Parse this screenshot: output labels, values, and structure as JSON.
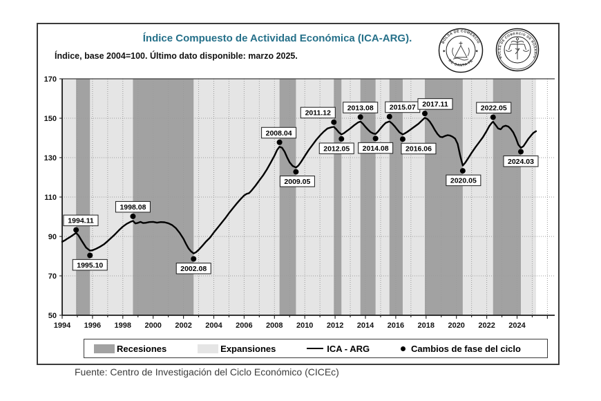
{
  "header": {
    "title": "Índice Compuesto de Actividad Económica (ICA-ARG).",
    "subtitle": "Índice, base 2004=100. Último dato disponible: marzo 2025."
  },
  "logos": {
    "santafe_top": "BOLSA DE COMERCIO",
    "santafe_bottom": "DE SANTA FE",
    "rosario_text": "BOLSA DE COMERCIO DE ROSARIO"
  },
  "legend": {
    "items": [
      {
        "label": "Recesiones"
      },
      {
        "label": "Expansiones"
      },
      {
        "label": "ICA - ARG"
      },
      {
        "label": "Cambios de fase del ciclo"
      }
    ]
  },
  "footer": {
    "source": "Fuente: Centro de Investigación del Ciclo Económico (CICEc)"
  },
  "colors": {
    "title": "#257089",
    "recession": "#a2a2a2",
    "expansion": "#e5e5e5",
    "grid": "#9a9a9a",
    "line": "#000000"
  },
  "chart_data": {
    "type": "line",
    "title": "Índice Compuesto de Actividad Económica (ICA-ARG).",
    "xlabel": "",
    "ylabel": "",
    "x_domain": [
      1994,
      2026.8
    ],
    "y_domain": [
      50,
      170
    ],
    "x_tick_labels": [
      1994,
      1996,
      1998,
      2000,
      2002,
      2004,
      2006,
      2008,
      2010,
      2012,
      2014,
      2016,
      2018,
      2020,
      2022,
      2024
    ],
    "y_tick_labels": [
      50,
      70,
      90,
      110,
      130,
      150,
      170
    ],
    "grid": true,
    "data_end_year": 2025.25,
    "recessions": [
      [
        1994.917,
        1995.833
      ],
      [
        1998.667,
        2002.667
      ],
      [
        2008.333,
        2009.417
      ],
      [
        2011.917,
        2012.417
      ],
      [
        2013.667,
        2014.667
      ],
      [
        2015.583,
        2016.458
      ],
      [
        2017.917,
        2020.417
      ],
      [
        2022.417,
        2024.25
      ]
    ],
    "series": [
      {
        "name": "ICA - ARG",
        "points": [
          [
            1994.0,
            87.3
          ],
          [
            1994.17,
            88.0
          ],
          [
            1994.33,
            88.8
          ],
          [
            1994.5,
            89.6
          ],
          [
            1994.67,
            90.5
          ],
          [
            1994.92,
            91.8
          ],
          [
            1995.08,
            90.5
          ],
          [
            1995.25,
            88.3
          ],
          [
            1995.42,
            86.2
          ],
          [
            1995.58,
            84.3
          ],
          [
            1995.83,
            82.8
          ],
          [
            1996.0,
            83.0
          ],
          [
            1996.25,
            83.8
          ],
          [
            1996.5,
            84.8
          ],
          [
            1996.75,
            86.0
          ],
          [
            1997.0,
            87.6
          ],
          [
            1997.25,
            89.4
          ],
          [
            1997.5,
            91.2
          ],
          [
            1997.75,
            93.2
          ],
          [
            1998.0,
            95.0
          ],
          [
            1998.25,
            96.4
          ],
          [
            1998.5,
            97.4
          ],
          [
            1998.67,
            97.9
          ],
          [
            1998.83,
            96.6
          ],
          [
            1999.0,
            96.9
          ],
          [
            1999.17,
            97.4
          ],
          [
            1999.33,
            96.8
          ],
          [
            1999.5,
            96.9
          ],
          [
            1999.75,
            97.3
          ],
          [
            2000.0,
            97.4
          ],
          [
            2000.25,
            97.0
          ],
          [
            2000.5,
            97.3
          ],
          [
            2000.75,
            97.2
          ],
          [
            2001.0,
            96.7
          ],
          [
            2001.25,
            95.8
          ],
          [
            2001.5,
            94.2
          ],
          [
            2001.75,
            91.8
          ],
          [
            2002.0,
            88.8
          ],
          [
            2002.17,
            86.2
          ],
          [
            2002.33,
            84.0
          ],
          [
            2002.5,
            82.4
          ],
          [
            2002.67,
            81.4
          ],
          [
            2002.83,
            82.0
          ],
          [
            2003.0,
            83.2
          ],
          [
            2003.25,
            85.3
          ],
          [
            2003.5,
            87.5
          ],
          [
            2003.75,
            89.4
          ],
          [
            2004.0,
            92.0
          ],
          [
            2004.25,
            94.4
          ],
          [
            2004.5,
            96.8
          ],
          [
            2004.75,
            99.2
          ],
          [
            2005.0,
            101.8
          ],
          [
            2005.25,
            104.2
          ],
          [
            2005.5,
            106.6
          ],
          [
            2005.75,
            108.8
          ],
          [
            2006.0,
            110.8
          ],
          [
            2006.17,
            111.6
          ],
          [
            2006.33,
            112.0
          ],
          [
            2006.5,
            113.4
          ],
          [
            2006.75,
            115.8
          ],
          [
            2007.0,
            118.4
          ],
          [
            2007.25,
            121.0
          ],
          [
            2007.5,
            124.0
          ],
          [
            2007.75,
            127.4
          ],
          [
            2008.0,
            131.0
          ],
          [
            2008.17,
            133.8
          ],
          [
            2008.33,
            135.5
          ],
          [
            2008.5,
            135.0
          ],
          [
            2008.67,
            133.0
          ],
          [
            2008.83,
            130.2
          ],
          [
            2009.0,
            127.6
          ],
          [
            2009.2,
            125.8
          ],
          [
            2009.42,
            125.0
          ],
          [
            2009.58,
            126.0
          ],
          [
            2009.75,
            127.8
          ],
          [
            2010.0,
            130.8
          ],
          [
            2010.25,
            133.8
          ],
          [
            2010.5,
            136.4
          ],
          [
            2010.75,
            139.0
          ],
          [
            2011.0,
            141.2
          ],
          [
            2011.25,
            143.2
          ],
          [
            2011.5,
            144.8
          ],
          [
            2011.75,
            145.4
          ],
          [
            2011.92,
            145.6
          ],
          [
            2012.08,
            144.4
          ],
          [
            2012.25,
            142.8
          ],
          [
            2012.42,
            141.8
          ],
          [
            2012.58,
            142.4
          ],
          [
            2012.75,
            143.4
          ],
          [
            2013.0,
            144.8
          ],
          [
            2013.25,
            146.4
          ],
          [
            2013.5,
            147.8
          ],
          [
            2013.67,
            148.3
          ],
          [
            2013.83,
            147.2
          ],
          [
            2014.0,
            145.6
          ],
          [
            2014.17,
            144.2
          ],
          [
            2014.33,
            143.0
          ],
          [
            2014.5,
            142.3
          ],
          [
            2014.67,
            142.0
          ],
          [
            2014.83,
            143.2
          ],
          [
            2015.0,
            144.8
          ],
          [
            2015.17,
            146.4
          ],
          [
            2015.33,
            147.6
          ],
          [
            2015.58,
            148.4
          ],
          [
            2015.75,
            147.4
          ],
          [
            2015.92,
            146.0
          ],
          [
            2016.08,
            144.4
          ],
          [
            2016.25,
            142.8
          ],
          [
            2016.46,
            141.8
          ],
          [
            2016.58,
            142.2
          ],
          [
            2016.75,
            143.0
          ],
          [
            2017.0,
            144.4
          ],
          [
            2017.25,
            145.8
          ],
          [
            2017.5,
            147.2
          ],
          [
            2017.75,
            149.0
          ],
          [
            2017.92,
            150.2
          ],
          [
            2018.08,
            149.6
          ],
          [
            2018.25,
            148.2
          ],
          [
            2018.42,
            146.2
          ],
          [
            2018.58,
            144.0
          ],
          [
            2018.75,
            142.0
          ],
          [
            2018.92,
            140.6
          ],
          [
            2019.08,
            140.4
          ],
          [
            2019.25,
            141.0
          ],
          [
            2019.42,
            141.4
          ],
          [
            2019.58,
            141.2
          ],
          [
            2019.75,
            140.6
          ],
          [
            2019.92,
            139.6
          ],
          [
            2020.08,
            137.0
          ],
          [
            2020.25,
            131.0
          ],
          [
            2020.42,
            126.0
          ],
          [
            2020.58,
            127.4
          ],
          [
            2020.75,
            129.4
          ],
          [
            2021.0,
            132.4
          ],
          [
            2021.25,
            135.2
          ],
          [
            2021.5,
            137.8
          ],
          [
            2021.75,
            140.4
          ],
          [
            2022.0,
            143.6
          ],
          [
            2022.17,
            146.0
          ],
          [
            2022.33,
            147.6
          ],
          [
            2022.42,
            148.2
          ],
          [
            2022.58,
            146.6
          ],
          [
            2022.75,
            144.8
          ],
          [
            2022.92,
            144.4
          ],
          [
            2023.08,
            145.8
          ],
          [
            2023.25,
            146.2
          ],
          [
            2023.42,
            145.8
          ],
          [
            2023.58,
            144.6
          ],
          [
            2023.75,
            142.8
          ],
          [
            2023.92,
            140.0
          ],
          [
            2024.08,
            136.6
          ],
          [
            2024.25,
            135.0
          ],
          [
            2024.42,
            135.8
          ],
          [
            2024.58,
            137.6
          ],
          [
            2024.75,
            139.6
          ],
          [
            2024.92,
            141.2
          ],
          [
            2025.08,
            142.6
          ],
          [
            2025.25,
            143.4
          ]
        ]
      }
    ],
    "phase_changes": [
      {
        "label": "1994.11",
        "year": 1994.917,
        "value": 93.3,
        "placement": "above",
        "dx": 2
      },
      {
        "label": "1995.10",
        "year": 1995.833,
        "value": 80.4,
        "placement": "below",
        "dx": 0
      },
      {
        "label": "1998.08",
        "year": 1998.667,
        "value": 100.2,
        "placement": "above",
        "dx": 0
      },
      {
        "label": "2002.08",
        "year": 2002.667,
        "value": 78.6,
        "placement": "below",
        "dx": 0
      },
      {
        "label": "2008.04",
        "year": 2008.333,
        "value": 137.8,
        "placement": "above",
        "dx": -1
      },
      {
        "label": "2009.05",
        "year": 2009.417,
        "value": 122.8,
        "placement": "below",
        "dx": 2
      },
      {
        "label": "2011.12",
        "year": 2011.917,
        "value": 148.0,
        "placement": "above",
        "dx": -23
      },
      {
        "label": "2012.05",
        "year": 2012.417,
        "value": 139.5,
        "placement": "below",
        "dx": -7
      },
      {
        "label": "2013.08",
        "year": 2013.667,
        "value": 150.6,
        "placement": "above",
        "dx": 0
      },
      {
        "label": "2014.08",
        "year": 2014.667,
        "value": 139.7,
        "placement": "below",
        "dx": 0
      },
      {
        "label": "2015.07",
        "year": 2015.583,
        "value": 150.8,
        "placement": "above",
        "dx": 19
      },
      {
        "label": "2016.06",
        "year": 2016.458,
        "value": 139.4,
        "placement": "below",
        "dx": 23
      },
      {
        "label": "2017.11",
        "year": 2017.917,
        "value": 152.4,
        "placement": "above",
        "dx": 15
      },
      {
        "label": "2020.05",
        "year": 2020.417,
        "value": 123.3,
        "placement": "below",
        "dx": 1
      },
      {
        "label": "2022.05",
        "year": 2022.417,
        "value": 150.5,
        "placement": "above",
        "dx": 1
      },
      {
        "label": "2024.03",
        "year": 2024.25,
        "value": 133.0,
        "placement": "below",
        "dx": 0
      }
    ]
  }
}
